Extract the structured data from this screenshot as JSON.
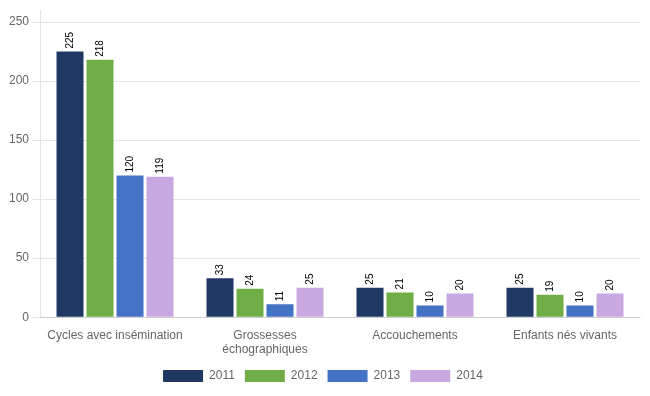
{
  "chart_data": {
    "type": "bar",
    "categories": [
      "Cycles avec insémination",
      "Grossesses\néchographiques",
      "Accouchements",
      "Enfants nés vivants"
    ],
    "series": [
      {
        "name": "2011",
        "color": "#1F3864",
        "values": [
          225,
          33,
          25,
          25
        ]
      },
      {
        "name": "2012",
        "color": "#70AD47",
        "values": [
          218,
          24,
          21,
          19
        ]
      },
      {
        "name": "2013",
        "color": "#4472C4",
        "values": [
          120,
          11,
          10,
          10
        ]
      },
      {
        "name": "2014",
        "color": "#C9A7E0",
        "values": [
          119,
          25,
          20,
          20
        ]
      }
    ],
    "ylim": [
      0,
      260
    ],
    "yticks": [
      0,
      50,
      100,
      150,
      200,
      250
    ],
    "grid": true,
    "legend": "bottom",
    "data_labels": true
  }
}
